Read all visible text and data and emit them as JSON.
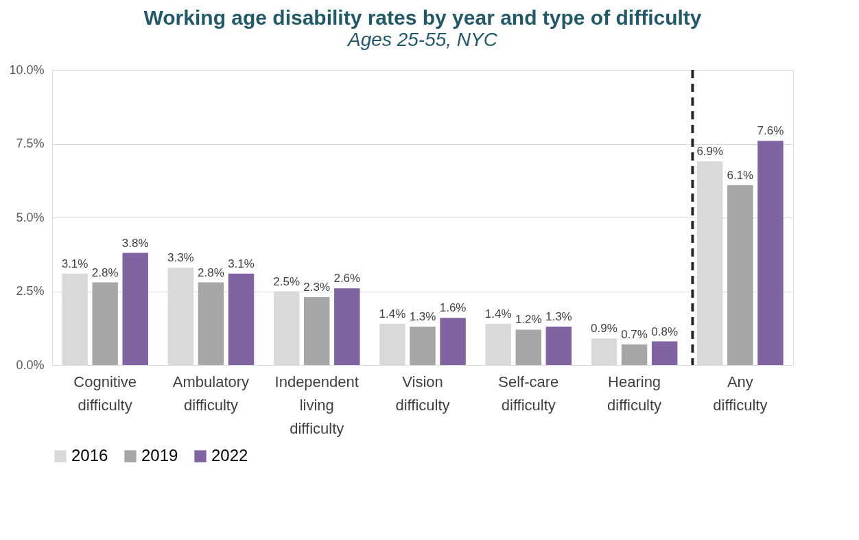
{
  "chart_data": {
    "type": "bar",
    "title": "Working age disability rates by year and type of difficulty",
    "subtitle": "Ages 25-55, NYC",
    "categories": [
      "Cognitive difficulty",
      "Ambulatory difficulty",
      "Independent living difficulty",
      "Vision difficulty",
      "Self-care difficulty",
      "Hearing difficulty",
      "Any difficulty"
    ],
    "series": [
      {
        "name": "2016",
        "color": "#d9d9d9",
        "values": [
          3.1,
          3.3,
          2.5,
          1.4,
          1.4,
          0.9,
          6.9
        ],
        "value_labels": [
          "3.1%",
          "3.3%",
          "2.5%",
          "1.4%",
          "1.4%",
          "0.9%",
          "6.9%"
        ]
      },
      {
        "name": "2019",
        "color": "#a6a6a6",
        "values": [
          2.8,
          2.8,
          2.3,
          1.3,
          1.2,
          0.7,
          6.1
        ],
        "value_labels": [
          "2.8%",
          "2.8%",
          "2.3%",
          "1.3%",
          "1.2%",
          "0.7%",
          "6.1%"
        ]
      },
      {
        "name": "2022",
        "color": "#8064a2",
        "values": [
          3.8,
          3.1,
          2.6,
          1.6,
          1.3,
          0.8,
          7.6
        ],
        "value_labels": [
          "3.8%",
          "3.1%",
          "2.6%",
          "1.6%",
          "1.3%",
          "0.8%",
          "7.6%"
        ]
      }
    ],
    "ylim": [
      0,
      10
    ],
    "yticks": [
      {
        "value": 0,
        "label": "0.0%"
      },
      {
        "value": 2.5,
        "label": "2.5%"
      },
      {
        "value": 5,
        "label": "5.0%"
      },
      {
        "value": 7.5,
        "label": "7.5%"
      },
      {
        "value": 10,
        "label": "10.0%"
      }
    ],
    "ref_lines": [
      {
        "axis": "x",
        "value": "Any difficulty",
        "line_style": "dashed",
        "color": "#262626"
      }
    ],
    "grid": "y",
    "legend": "bottom"
  }
}
